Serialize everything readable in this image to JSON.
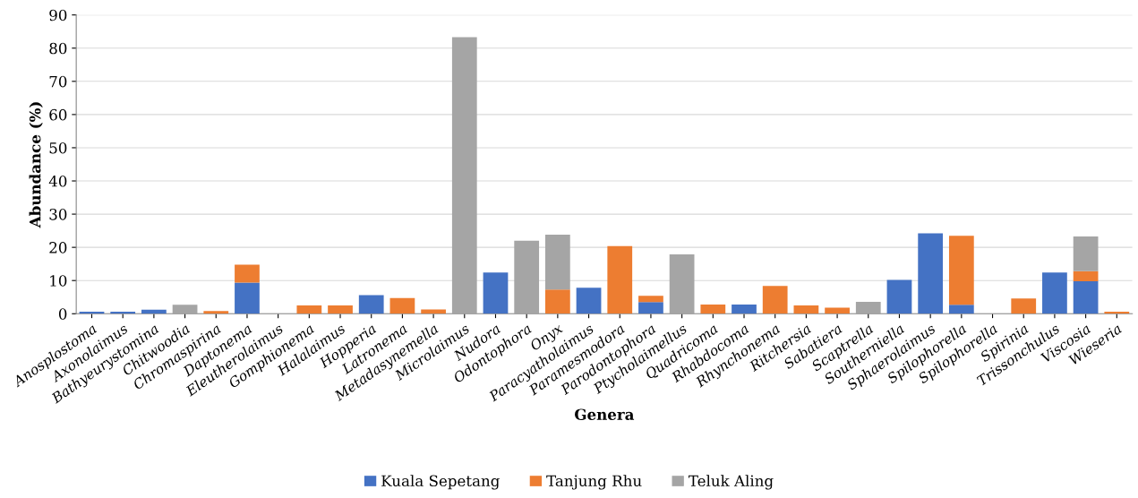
{
  "chart_data": {
    "type": "bar",
    "stacked": true,
    "xlabel": "Genera",
    "ylabel": "Abundance (%)",
    "categories": [
      "Anosplostoma",
      "Axonolaimus",
      "Bathyeurystomina",
      "Chitwoodia",
      "Chromaspirina",
      "Daptonema",
      "Eleutherolaimus",
      "Gomphionema",
      "Halalaimus",
      "Hopperia",
      "Latronema",
      "Metadasynemella",
      "Microlaimus",
      "Nudora",
      "Odontophora",
      "Onyx",
      "Paracyatholaimus",
      "Paramesmodora",
      "Parodontophora",
      "Ptycholaimellus",
      "Quadricoma",
      "Rhabdocoma",
      "Rhynchonema",
      "Ritchersia",
      "Sabatiera",
      "Scaptrella",
      "Southerniella",
      "Sphaerolaimus",
      "Spilophorella",
      "Spilophorella",
      "Spirinia",
      "Trissonchulus",
      "Viscosia",
      "Wieseria"
    ],
    "series": [
      {
        "name": "Kuala Sepetang",
        "color": "#4472c4",
        "values": [
          0.6,
          0.6,
          1.2,
          0,
          0,
          9.4,
          0,
          0,
          0,
          5.6,
          0,
          0,
          0,
          12.4,
          0,
          0,
          7.8,
          0,
          3.5,
          0,
          0,
          2.8,
          0,
          0,
          0,
          0,
          10.2,
          24.2,
          2.7,
          0,
          0,
          12.4,
          9.8,
          0
        ]
      },
      {
        "name": "Tanjung Rhu",
        "color": "#ed7d31",
        "values": [
          0,
          0,
          0,
          0,
          0.8,
          5.4,
          0,
          2.5,
          2.5,
          0,
          4.7,
          1.3,
          0,
          0,
          0,
          7.3,
          0,
          20.4,
          1.9,
          0,
          2.8,
          0,
          8.4,
          2.5,
          1.8,
          0,
          0,
          0,
          20.8,
          0,
          4.6,
          0,
          3.0,
          0.6
        ]
      },
      {
        "name": "Teluk Aling",
        "color": "#a5a5a5",
        "values": [
          0,
          0,
          0,
          2.7,
          0,
          0,
          0,
          0,
          0,
          0,
          0,
          0,
          83.3,
          0,
          22.0,
          16.5,
          0,
          0,
          0,
          17.9,
          0,
          0,
          0,
          0,
          0,
          3.6,
          0,
          0,
          0,
          0,
          0,
          0,
          10.5,
          0
        ]
      }
    ],
    "ylim": [
      0,
      90
    ],
    "yticks": [
      0,
      10,
      20,
      30,
      40,
      50,
      60,
      70,
      80,
      90
    ],
    "grid": "y",
    "legend": "bottom"
  }
}
